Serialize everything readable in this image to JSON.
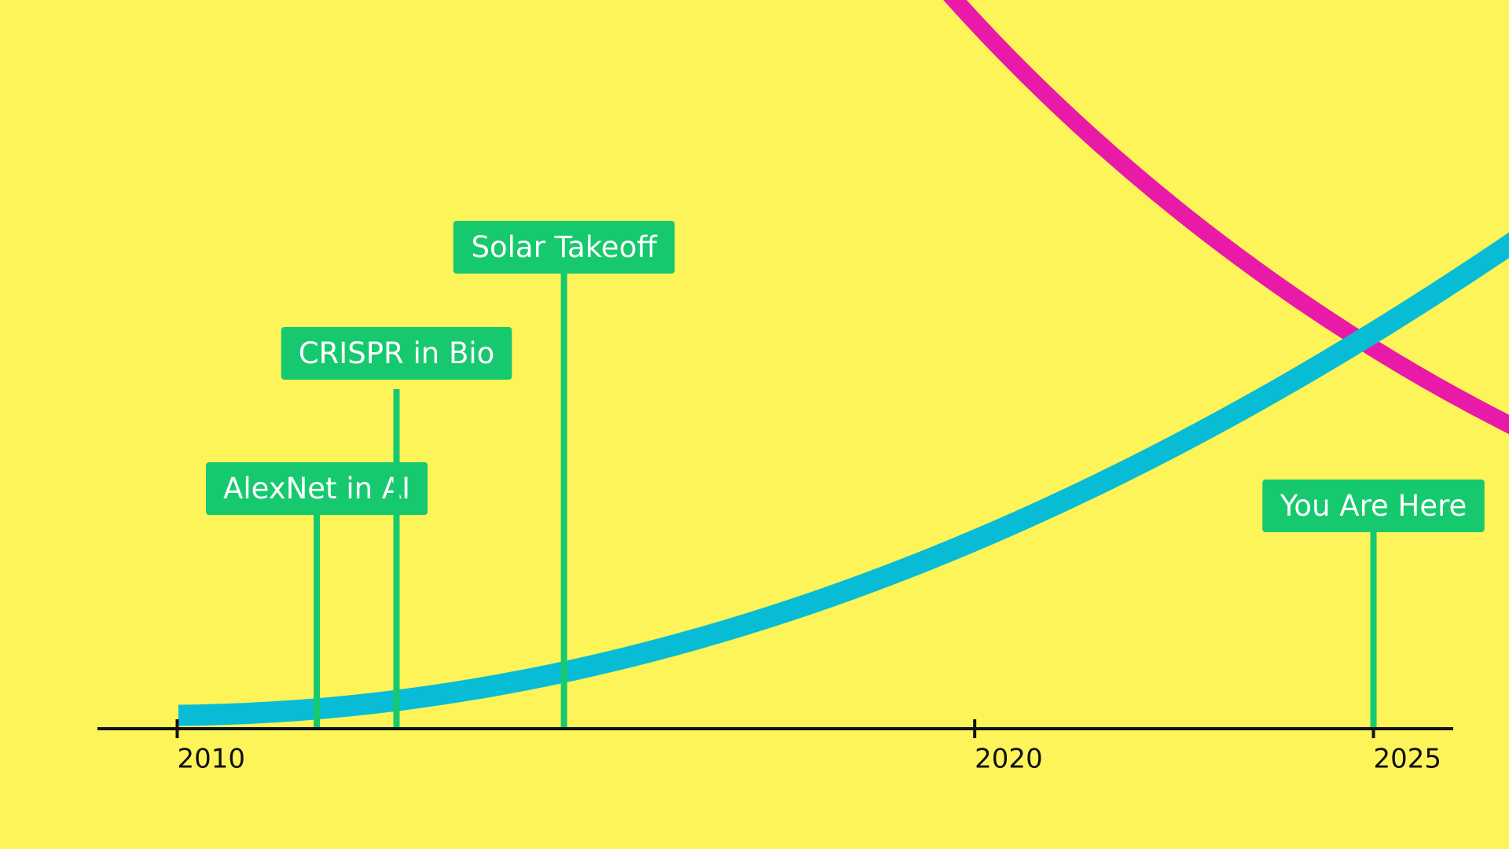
{
  "chart_data": {
    "type": "timeline",
    "xlim": [
      2009,
      2026
    ],
    "xticks": [
      2010,
      2020,
      2025
    ],
    "events": [
      {
        "label": "AlexNet in AI",
        "x": 2011.75
      },
      {
        "label": "CRISPR in Bio",
        "x": 2012.75
      },
      {
        "label": "Solar Takeoff",
        "x": 2014.85
      },
      {
        "label": "You Are Here",
        "x": 2025
      }
    ],
    "color": "#17c96e"
  }
}
